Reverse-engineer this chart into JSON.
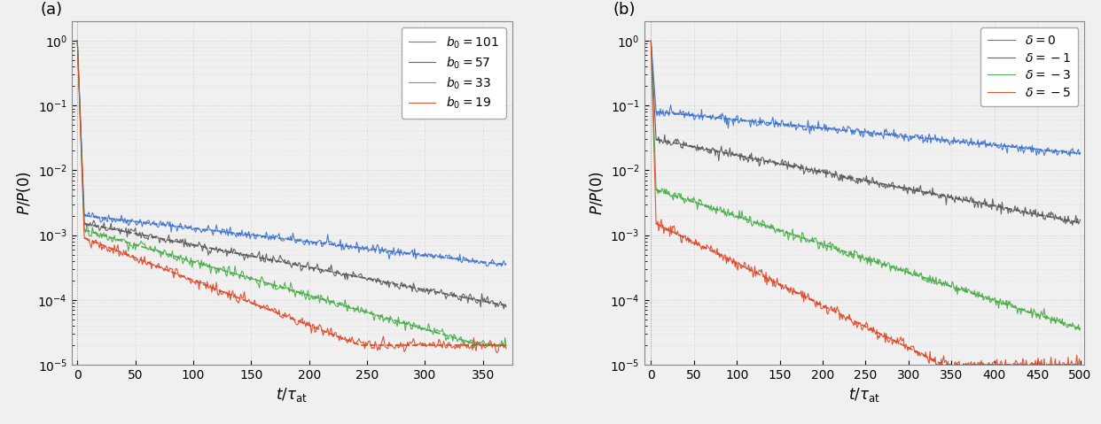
{
  "panel_a": {
    "title": "(a)",
    "xlabel": "$t/\\tau_{\\mathrm{at}}$",
    "ylabel": "$P/P(0)$",
    "xlim": [
      -5,
      375
    ],
    "ylim_log": [
      1e-05,
      2.0
    ],
    "xticks": [
      0,
      50,
      100,
      150,
      200,
      250,
      300,
      350
    ],
    "series": [
      {
        "label": "$b_0=101$",
        "color": "#3a6fcc",
        "decay": 0.0048,
        "noise": 0.35,
        "floor": 4e-05,
        "seed": 42,
        "start_val": 0.002
      },
      {
        "label": "$b_0=57$",
        "color": "#555555",
        "decay": 0.008,
        "noise": 0.35,
        "floor": 3e-05,
        "seed": 43,
        "start_val": 0.0015
      },
      {
        "label": "$b_0=33$",
        "color": "#44aa44",
        "decay": 0.012,
        "noise": 0.38,
        "floor": 2e-05,
        "seed": 44,
        "start_val": 0.0012
      },
      {
        "label": "$b_0=19$",
        "color": "#dd4422",
        "decay": 0.016,
        "noise": 0.4,
        "floor": 2e-05,
        "seed": 45,
        "start_val": 0.0009
      }
    ],
    "n_points": 370,
    "drop_end": 6
  },
  "panel_b": {
    "title": "(b)",
    "xlabel": "$t/\\tau_{\\mathrm{at}}$",
    "ylabel": "$P/P(0)$",
    "xlim": [
      -8,
      505
    ],
    "ylim_log": [
      1e-05,
      2.0
    ],
    "xticks": [
      0,
      50,
      100,
      150,
      200,
      250,
      300,
      350,
      400,
      450,
      500
    ],
    "series": [
      {
        "label": "$\\delta=0$",
        "color": "#3a6fcc",
        "decay": 0.003,
        "noise": 0.35,
        "floor": 6e-05,
        "seed": 50,
        "start_val": 0.08
      },
      {
        "label": "$\\delta=-1$",
        "color": "#555555",
        "decay": 0.006,
        "noise": 0.35,
        "floor": 4e-05,
        "seed": 51,
        "start_val": 0.03
      },
      {
        "label": "$\\delta=-3$",
        "color": "#44aa44",
        "decay": 0.01,
        "noise": 0.38,
        "floor": 2e-05,
        "seed": 52,
        "start_val": 0.005
      },
      {
        "label": "$\\delta=-5$",
        "color": "#dd4422",
        "decay": 0.015,
        "noise": 0.4,
        "floor": 1e-05,
        "seed": 53,
        "start_val": 0.0015
      }
    ],
    "n_points": 500,
    "drop_end": 6
  },
  "fig_background": "#f0f0f0",
  "ax_background": "#f0f0f0",
  "grid_color": "#cccccc",
  "grid_style": ":",
  "legend_fontsize": 10,
  "axis_label_fontsize": 12,
  "tick_label_fontsize": 10
}
